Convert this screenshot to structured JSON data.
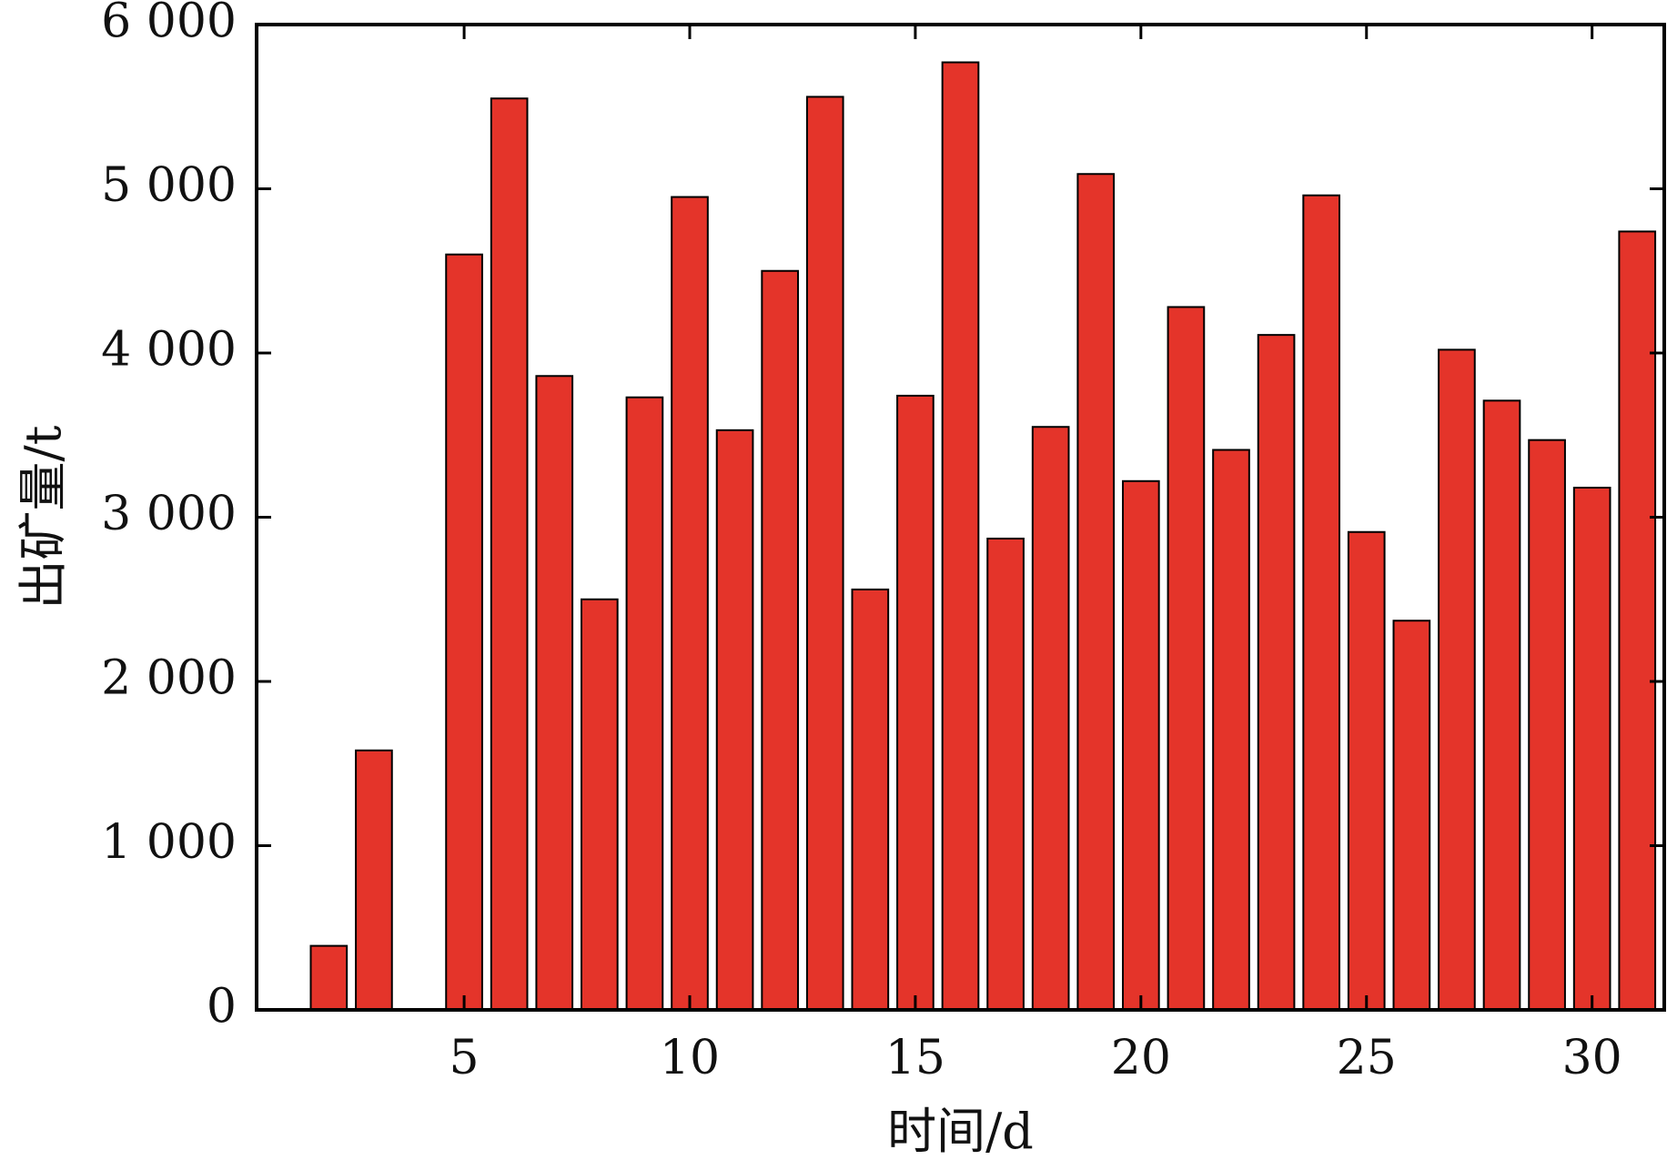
{
  "chart_data": {
    "type": "bar",
    "xlabel": "时间/d",
    "ylabel": "出矿量/t",
    "xlim": [
      0.4,
      31.6
    ],
    "ylim": [
      0,
      6000
    ],
    "xticks": [
      {
        "value": 5,
        "label": "5"
      },
      {
        "value": 10,
        "label": "10"
      },
      {
        "value": 15,
        "label": "15"
      },
      {
        "value": 20,
        "label": "20"
      },
      {
        "value": 25,
        "label": "25"
      },
      {
        "value": 30,
        "label": "30"
      }
    ],
    "yticks": [
      {
        "value": 0,
        "label": "0"
      },
      {
        "value": 1000,
        "label": "1 000"
      },
      {
        "value": 2000,
        "label": "2 000"
      },
      {
        "value": 3000,
        "label": "3 000"
      },
      {
        "value": 4000,
        "label": "4 000"
      },
      {
        "value": 5000,
        "label": "5 000"
      },
      {
        "value": 6000,
        "label": "6 000"
      }
    ],
    "x": [
      2,
      3,
      4,
      5,
      6,
      7,
      8,
      9,
      10,
      11,
      12,
      13,
      14,
      15,
      16,
      17,
      18,
      19,
      20,
      21,
      22,
      23,
      24,
      25,
      26,
      27,
      28,
      29,
      30,
      31
    ],
    "values": [
      390,
      1580,
      0,
      4600,
      5550,
      3860,
      2500,
      3730,
      4950,
      3530,
      4500,
      5560,
      2560,
      3740,
      5770,
      2870,
      3550,
      5090,
      3220,
      4280,
      3410,
      4110,
      4960,
      2910,
      2370,
      4020,
      3710,
      3470,
      3180,
      4740
    ],
    "bar_color": "#e4342a",
    "bar_edge_color": "#000000",
    "grid": false,
    "legend": "none"
  }
}
